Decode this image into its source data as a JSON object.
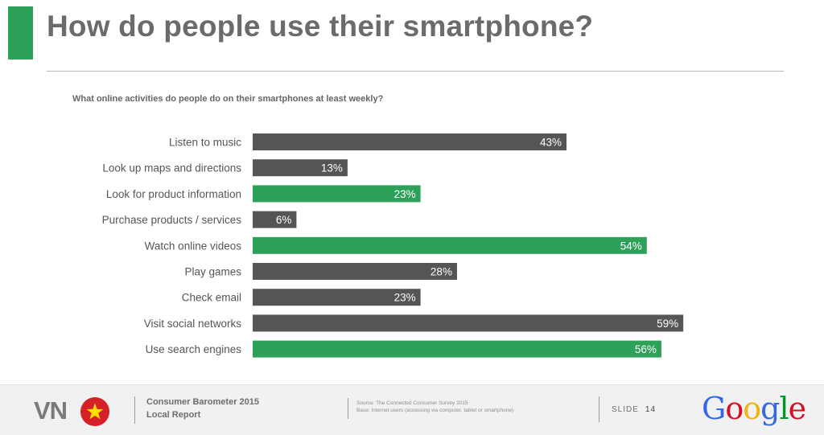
{
  "title": "How do people use their smartphone?",
  "subtitle": "What online activities do people do on their smartphones at least weekly?",
  "colors": {
    "dark": "#555555",
    "green": "#2da15a",
    "accent": "#2da15a"
  },
  "chart_data": {
    "type": "bar",
    "orientation": "horizontal",
    "title": "What online activities do people do on their smartphones at least weekly?",
    "xlabel": "",
    "ylabel": "",
    "xlim": [
      0,
      70
    ],
    "categories": [
      "Listen to music",
      "Look up maps and directions",
      "Look for product information",
      "Purchase products / services",
      "Watch online videos",
      "Play games",
      "Check email",
      "Visit social networks",
      "Use search engines"
    ],
    "values": [
      43,
      13,
      23,
      6,
      54,
      28,
      23,
      59,
      56
    ],
    "labels": [
      "43%",
      "13%",
      "23%",
      "6%",
      "54%",
      "28%",
      "23%",
      "59%",
      "56%"
    ],
    "highlight": [
      false,
      false,
      true,
      false,
      true,
      false,
      false,
      false,
      true
    ]
  },
  "footer": {
    "country": "VN",
    "report_line1": "Consumer Barometer 2015",
    "report_line2": "Local Report",
    "source_line1": "Source: The Connected Consumer Survey 2015",
    "source_line2": "Base: Internet users (accessing via computer, tablet or smartphone)",
    "slide_label": "SLIDE",
    "slide_number": "14",
    "logo": {
      "text": "Google",
      "letters": [
        "G",
        "o",
        "o",
        "g",
        "l",
        "e"
      ],
      "colors": [
        "#3369e8",
        "#d50f25",
        "#eeb211",
        "#3369e8",
        "#009925",
        "#d50f25"
      ]
    }
  }
}
